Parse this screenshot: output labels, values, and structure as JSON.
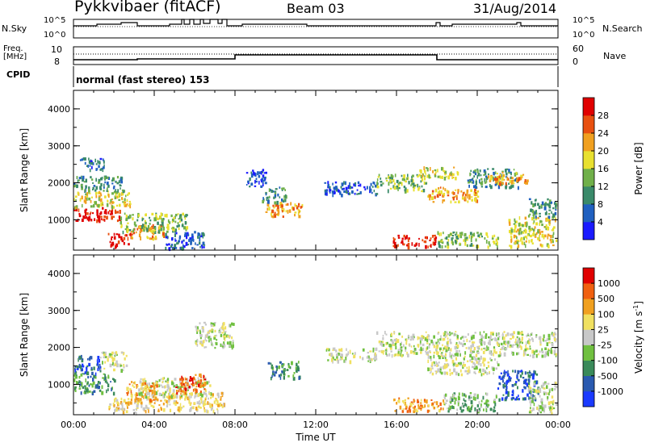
{
  "header": {
    "station": "Pykkvibaer (fitACF)",
    "beam": "Beam 03",
    "date": "31/Aug/2014"
  },
  "nsky_panel": {
    "left_label": "N.Sky",
    "left_ticks": [
      "10^5",
      "10^0"
    ],
    "right_ticks": [
      "10^5",
      "10^0"
    ],
    "right_label": "N.Search"
  },
  "freq_panel": {
    "left_label_line1": "Freq.",
    "left_label_line2": "[MHz]",
    "left_ticks": [
      "10",
      "8"
    ],
    "right_ticks": [
      "60",
      "0"
    ],
    "right_label": "Nave"
  },
  "cpid": {
    "label": "CPID",
    "text": "normal (fast stereo) 153"
  },
  "chart_data": [
    {
      "type": "heatmap",
      "name": "power",
      "xlabel": "",
      "ylabel": "Slant Range [km]",
      "xlim": [
        0,
        24
      ],
      "ylim": [
        180,
        4500
      ],
      "y_ticks": [
        "1000",
        "2000",
        "3000",
        "4000"
      ],
      "colorbar": {
        "label": "Power [dB]",
        "ticks": [
          "4",
          "8",
          "12",
          "16",
          "20",
          "24",
          "28"
        ],
        "colors": [
          "#1a1aff",
          "#2060c0",
          "#3a8a6a",
          "#70b04a",
          "#e8e030",
          "#f0a020",
          "#e85010",
          "#e00000"
        ]
      },
      "regions": [
        {
          "t0": 0.0,
          "t1": 2.3,
          "r0": 1000,
          "r1": 1350,
          "level": 7
        },
        {
          "t0": 0.0,
          "t1": 2.8,
          "r0": 1350,
          "r1": 1800,
          "level": 4
        },
        {
          "t0": 0.0,
          "t1": 2.5,
          "r0": 1800,
          "r1": 2200,
          "level": 2
        },
        {
          "t0": 0.3,
          "t1": 1.5,
          "r0": 2350,
          "r1": 2700,
          "level": 1
        },
        {
          "t0": 1.7,
          "t1": 2.8,
          "r0": 300,
          "r1": 650,
          "level": 7
        },
        {
          "t0": 2.8,
          "t1": 4.5,
          "r0": 500,
          "r1": 900,
          "level": 5
        },
        {
          "t0": 2.3,
          "t1": 5.6,
          "r0": 700,
          "r1": 1200,
          "level": 3
        },
        {
          "t0": 4.5,
          "t1": 6.5,
          "r0": 250,
          "r1": 700,
          "level": 1
        },
        {
          "t0": 8.5,
          "t1": 9.5,
          "r0": 1900,
          "r1": 2400,
          "level": 1
        },
        {
          "t0": 9.5,
          "t1": 11.3,
          "r0": 1100,
          "r1": 1500,
          "level": 5
        },
        {
          "t0": 9.3,
          "t1": 10.5,
          "r0": 1500,
          "r1": 1900,
          "level": 2
        },
        {
          "t0": 12.3,
          "t1": 15.0,
          "r0": 1700,
          "r1": 2050,
          "level": 1
        },
        {
          "t0": 15.0,
          "t1": 17.5,
          "r0": 1800,
          "r1": 2250,
          "level": 3
        },
        {
          "t0": 17.0,
          "t1": 19.0,
          "r0": 2150,
          "r1": 2450,
          "level": 4
        },
        {
          "t0": 17.5,
          "t1": 20.0,
          "r0": 1500,
          "r1": 1900,
          "level": 5
        },
        {
          "t0": 19.5,
          "t1": 22.0,
          "r0": 1900,
          "r1": 2400,
          "level": 2
        },
        {
          "t0": 20.5,
          "t1": 22.5,
          "r0": 2000,
          "r1": 2300,
          "level": 5
        },
        {
          "t0": 15.8,
          "t1": 18.0,
          "r0": 300,
          "r1": 600,
          "level": 7
        },
        {
          "t0": 18.0,
          "t1": 21.0,
          "r0": 300,
          "r1": 700,
          "level": 3
        },
        {
          "t0": 21.5,
          "t1": 23.9,
          "r0": 300,
          "r1": 1100,
          "level": 4
        },
        {
          "t0": 22.5,
          "t1": 23.9,
          "r0": 1100,
          "r1": 1600,
          "level": 2
        }
      ]
    },
    {
      "type": "heatmap",
      "name": "velocity",
      "xlabel": "Time UT",
      "ylabel": "Slant Range [km]",
      "xlim": [
        0,
        24
      ],
      "ylim": [
        180,
        4500
      ],
      "y_ticks": [
        "1000",
        "2000",
        "3000",
        "4000"
      ],
      "x_ticks": [
        "00:00",
        "04:00",
        "08:00",
        "12:00",
        "16:00",
        "20:00",
        "00:00"
      ],
      "colorbar": {
        "label": "Velocity [m s",
        "exponent": "-1",
        "label_end": "]",
        "ticks": [
          "1000",
          "500",
          "100",
          "25",
          "-25",
          "-100",
          "-500",
          "-1000"
        ],
        "colors": [
          "#1a3aff",
          "#2a5ab0",
          "#3a8a5a",
          "#70c040",
          "#c8c8c8",
          "#f0e060",
          "#f0a020",
          "#f06010",
          "#e00000"
        ]
      },
      "regions": [
        {
          "t0": 0.0,
          "t1": 1.3,
          "r0": 1300,
          "r1": 1800,
          "level": 1
        },
        {
          "t0": 0.0,
          "t1": 2.0,
          "r0": 800,
          "r1": 1300,
          "level": 2
        },
        {
          "t0": 1.3,
          "t1": 2.6,
          "r0": 1400,
          "r1": 1900,
          "level": 4
        },
        {
          "t0": 1.7,
          "t1": 3.3,
          "r0": 250,
          "r1": 650,
          "level": 5
        },
        {
          "t0": 3.0,
          "t1": 7.5,
          "r0": 300,
          "r1": 800,
          "level": 5
        },
        {
          "t0": 3.2,
          "t1": 6.8,
          "r0": 700,
          "r1": 1200,
          "level": 4
        },
        {
          "t0": 2.6,
          "t1": 4.2,
          "r0": 600,
          "r1": 1100,
          "level": 6
        },
        {
          "t0": 5.0,
          "t1": 6.5,
          "r0": 800,
          "r1": 1300,
          "level": 7
        },
        {
          "t0": 6.0,
          "t1": 8.0,
          "r0": 2000,
          "r1": 2700,
          "level": 4
        },
        {
          "t0": 9.6,
          "t1": 11.2,
          "r0": 1200,
          "r1": 1650,
          "level": 2
        },
        {
          "t0": 12.5,
          "t1": 15.0,
          "r0": 1650,
          "r1": 2000,
          "level": 4
        },
        {
          "t0": 15.0,
          "t1": 23.9,
          "r0": 1800,
          "r1": 2450,
          "level": 4
        },
        {
          "t0": 17.5,
          "t1": 21.0,
          "r0": 1300,
          "r1": 1800,
          "level": 4
        },
        {
          "t0": 15.8,
          "t1": 18.3,
          "r0": 300,
          "r1": 650,
          "level": 6
        },
        {
          "t0": 18.3,
          "t1": 21.0,
          "r0": 300,
          "r1": 800,
          "level": 3
        },
        {
          "t0": 21.0,
          "t1": 23.0,
          "r0": 600,
          "r1": 1400,
          "level": 1
        },
        {
          "t0": 22.5,
          "t1": 23.9,
          "r0": 250,
          "r1": 1100,
          "level": 4
        }
      ]
    }
  ]
}
